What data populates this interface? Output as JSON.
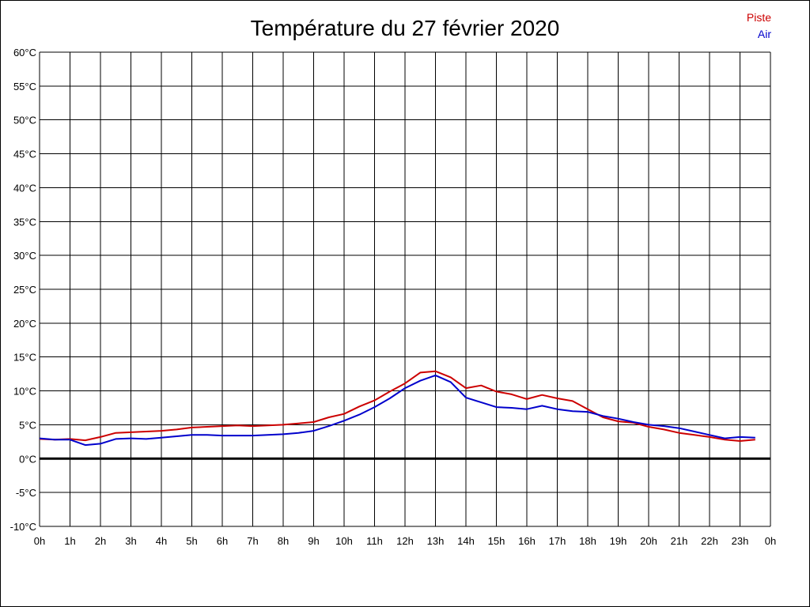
{
  "chart_data": {
    "type": "line",
    "title": "Température du 27 février 2020",
    "xlabel": "",
    "ylabel": "",
    "x_ticks": [
      "0h",
      "1h",
      "2h",
      "3h",
      "4h",
      "5h",
      "6h",
      "7h",
      "8h",
      "9h",
      "10h",
      "11h",
      "12h",
      "13h",
      "14h",
      "15h",
      "16h",
      "17h",
      "18h",
      "19h",
      "20h",
      "21h",
      "22h",
      "23h",
      "0h"
    ],
    "y_ticks": [
      "-10°C",
      "-5°C",
      "0°C",
      "5°C",
      "10°C",
      "15°C",
      "20°C",
      "25°C",
      "30°C",
      "35°C",
      "40°C",
      "45°C",
      "50°C",
      "55°C",
      "60°C"
    ],
    "xlim": [
      0,
      24
    ],
    "ylim": [
      -10,
      60
    ],
    "grid": true,
    "legend_position": "top-right",
    "zero_line": true,
    "series": [
      {
        "name": "Piste",
        "color": "#cc0000",
        "x": [
          0,
          0.5,
          1,
          1.5,
          2,
          2.5,
          3,
          3.5,
          4,
          4.5,
          5,
          5.5,
          6,
          6.5,
          7,
          7.5,
          8,
          8.5,
          9,
          9.5,
          10,
          10.5,
          11,
          11.5,
          12,
          12.5,
          13,
          13.5,
          14,
          14.5,
          15,
          15.5,
          16,
          16.5,
          17,
          17.5,
          18,
          18.5,
          19,
          19.5,
          20,
          20.5,
          21,
          21.5,
          22,
          22.5,
          23,
          23.5
        ],
        "values": [
          2.9,
          2.8,
          2.9,
          2.7,
          3.2,
          3.8,
          3.9,
          4.0,
          4.1,
          4.3,
          4.6,
          4.7,
          4.8,
          4.9,
          4.8,
          4.9,
          5.0,
          5.2,
          5.4,
          6.1,
          6.6,
          7.7,
          8.6,
          9.9,
          11.1,
          12.7,
          12.9,
          12.0,
          10.4,
          10.8,
          9.9,
          9.5,
          8.8,
          9.4,
          8.9,
          8.5,
          7.3,
          6.1,
          5.5,
          5.3,
          4.7,
          4.3,
          3.8,
          3.5,
          3.2,
          2.8,
          2.6,
          2.8
        ]
      },
      {
        "name": "Air",
        "color": "#0000cc",
        "x": [
          0,
          0.5,
          1,
          1.5,
          2,
          2.5,
          3,
          3.5,
          4,
          4.5,
          5,
          5.5,
          6,
          6.5,
          7,
          7.5,
          8,
          8.5,
          9,
          9.5,
          10,
          10.5,
          11,
          11.5,
          12,
          12.5,
          13,
          13.5,
          14,
          14.5,
          15,
          15.5,
          16,
          16.5,
          17,
          17.5,
          18,
          18.5,
          19,
          19.5,
          20,
          20.5,
          21,
          21.5,
          22,
          22.5,
          23,
          23.5
        ],
        "values": [
          3.0,
          2.8,
          2.8,
          2.0,
          2.2,
          2.9,
          3.0,
          2.9,
          3.1,
          3.3,
          3.5,
          3.5,
          3.4,
          3.4,
          3.4,
          3.5,
          3.6,
          3.8,
          4.1,
          4.8,
          5.6,
          6.5,
          7.6,
          8.9,
          10.4,
          11.5,
          12.3,
          11.3,
          9.0,
          8.3,
          7.6,
          7.5,
          7.3,
          7.8,
          7.3,
          7.0,
          6.9,
          6.3,
          5.9,
          5.4,
          5.0,
          4.8,
          4.5,
          4.0,
          3.5,
          3.0,
          3.2,
          3.1
        ]
      }
    ]
  }
}
